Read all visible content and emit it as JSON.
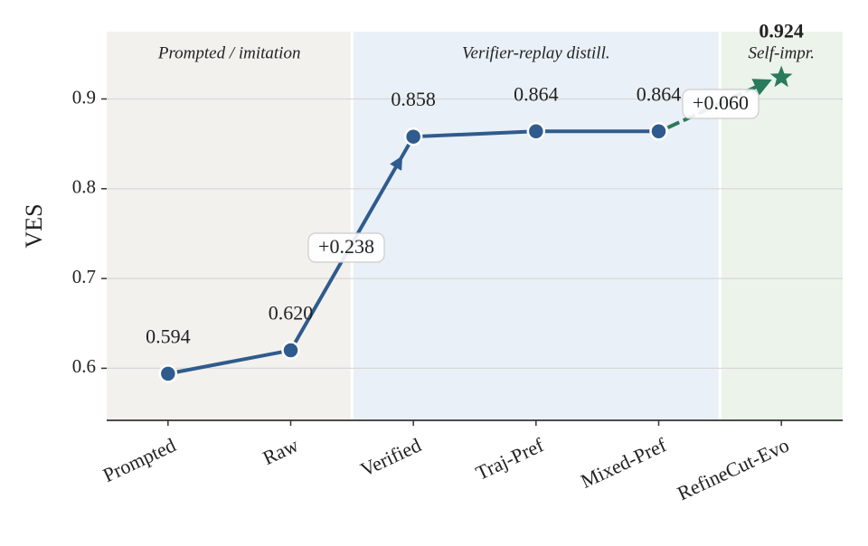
{
  "chart_data": {
    "type": "line",
    "y_label": "VES",
    "categories": [
      "Prompted",
      "Raw",
      "Verified",
      "Traj-Pref",
      "Mixed-Pref",
      "RefineCut-Evo"
    ],
    "series": [
      {
        "name": "main",
        "color": "#2f5b8e",
        "values": [
          0.594,
          0.62,
          0.858,
          0.864,
          0.864,
          null
        ],
        "value_labels": [
          "0.594",
          "0.620",
          "0.858",
          "0.864",
          "0.864",
          null
        ]
      },
      {
        "name": "evo",
        "color": "#2a7a5c",
        "values": [
          null,
          null,
          null,
          null,
          null,
          0.924
        ],
        "value_labels": [
          null,
          null,
          null,
          null,
          null,
          "0.924"
        ]
      }
    ],
    "regions": [
      {
        "label": "Prompted / imitation",
        "color": "#f3f1ed"
      },
      {
        "label": "Verifier-replay distill.",
        "color": "#eaf0f7"
      },
      {
        "label": "Self-impr.",
        "color": "#ebf3ea"
      }
    ],
    "annotations": [
      "+0.238",
      "+0.060"
    ],
    "ylim": [
      0.542,
      0.975
    ],
    "yticks": [
      0.6,
      0.7,
      0.8,
      0.9
    ],
    "grid": true
  }
}
